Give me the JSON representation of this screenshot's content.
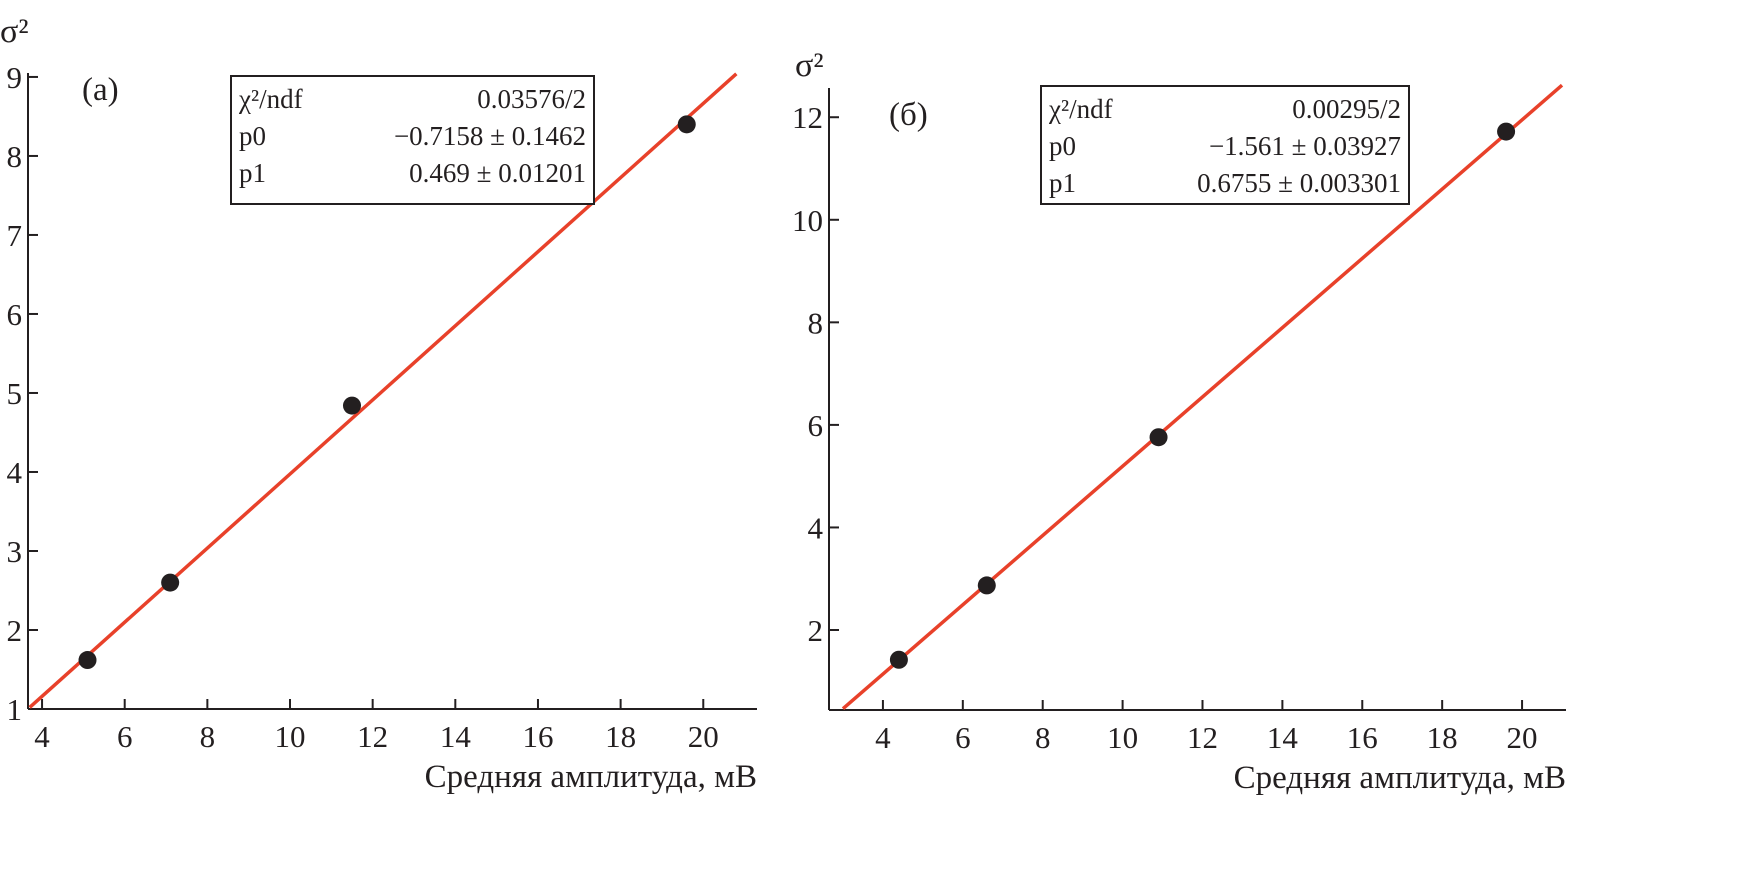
{
  "chart_data": [
    {
      "type": "scatter",
      "panel_label": "(a)",
      "xlabel": "Средняя амплитуда, мВ",
      "ylabel": "σ²",
      "xlim": [
        3.66,
        21.3
      ],
      "ylim": [
        1,
        9.05
      ],
      "xticks": [
        4,
        6,
        8,
        10,
        12,
        14,
        16,
        18,
        20
      ],
      "yticks": [
        1,
        2,
        3,
        4,
        5,
        6,
        7,
        8,
        9
      ],
      "points": {
        "x": [
          5.1,
          7.1,
          11.5,
          19.6
        ],
        "y": [
          1.62,
          2.6,
          4.84,
          8.4
        ]
      },
      "fit": {
        "p0": -0.7158,
        "p1": 0.469,
        "x_range": [
          3.7,
          20.8
        ],
        "color": "#e8412a"
      },
      "stats": [
        {
          "name": "χ²/ndf",
          "value": "0.03576/2"
        },
        {
          "name": "p0",
          "value": "−0.7158 ± 0.1462"
        },
        {
          "name": "p1",
          "value": "0.469 ± 0.01201"
        }
      ]
    },
    {
      "type": "scatter",
      "panel_label": "(б)",
      "xlabel": "Средняя амплитуда, мВ",
      "ylabel": "σ²",
      "xlim": [
        2.65,
        21.1
      ],
      "ylim": [
        0.44,
        12.57
      ],
      "xticks": [
        4,
        6,
        8,
        10,
        12,
        14,
        16,
        18,
        20
      ],
      "yticks": [
        2,
        4,
        6,
        8,
        10,
        12
      ],
      "points": {
        "x": [
          4.4,
          6.6,
          10.9,
          19.6
        ],
        "y": [
          1.42,
          2.87,
          5.76,
          11.72
        ]
      },
      "fit": {
        "p0": -1.561,
        "p1": 0.6755,
        "x_range": [
          3.0,
          21.0
        ],
        "color": "#e8412a"
      },
      "stats": [
        {
          "name": "χ²/ndf",
          "value": "0.00295/2"
        },
        {
          "name": "p0",
          "value": "−1.561 ± 0.03927"
        },
        {
          "name": "p1",
          "value": "0.6755 ± 0.003301"
        }
      ]
    }
  ]
}
